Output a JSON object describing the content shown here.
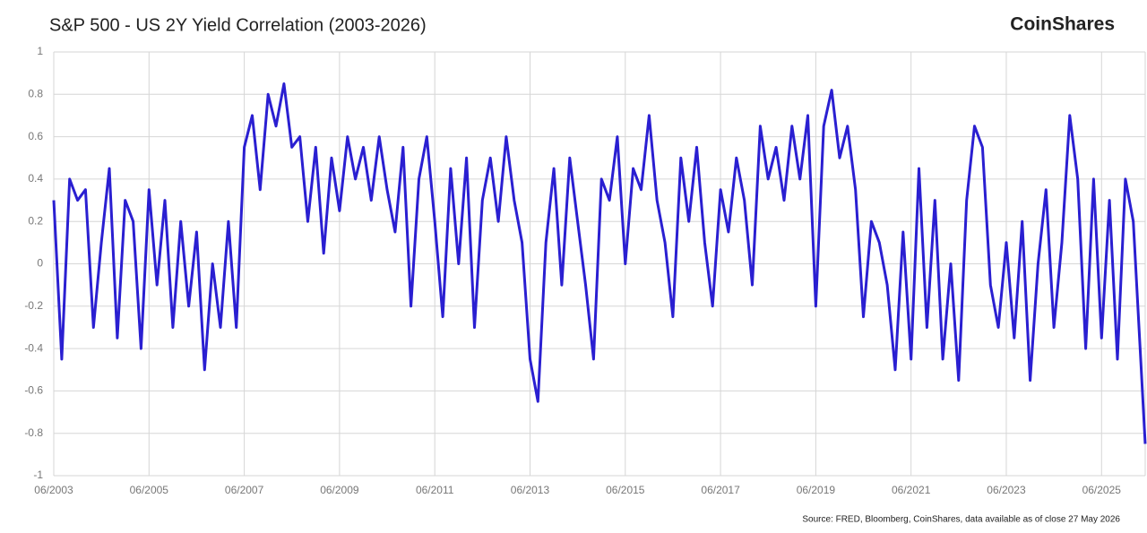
{
  "chart_data": {
    "type": "line",
    "title": "S&P 500 - US 2Y Yield Correlation (2003-2026)",
    "brand": "CoinShares",
    "source": "Source: FRED, Bloomberg, CoinShares, data available as of close 27 May 2026",
    "x": [
      "06/2003",
      "08/2003",
      "10/2003",
      "12/2003",
      "02/2004",
      "04/2004",
      "06/2004",
      "08/2004",
      "10/2004",
      "12/2004",
      "02/2005",
      "04/2005",
      "06/2005",
      "08/2005",
      "10/2005",
      "12/2005",
      "02/2006",
      "04/2006",
      "06/2006",
      "08/2006",
      "10/2006",
      "12/2006",
      "02/2007",
      "04/2007",
      "06/2007",
      "08/2007",
      "10/2007",
      "12/2007",
      "02/2008",
      "04/2008",
      "06/2008",
      "08/2008",
      "10/2008",
      "12/2008",
      "02/2009",
      "04/2009",
      "06/2009",
      "08/2009",
      "10/2009",
      "12/2009",
      "02/2010",
      "04/2010",
      "06/2010",
      "08/2010",
      "10/2010",
      "12/2010",
      "02/2011",
      "04/2011",
      "06/2011",
      "08/2011",
      "10/2011",
      "12/2011",
      "02/2012",
      "04/2012",
      "06/2012",
      "08/2012",
      "10/2012",
      "12/2012",
      "02/2013",
      "04/2013",
      "06/2013",
      "08/2013",
      "10/2013",
      "12/2013",
      "02/2014",
      "04/2014",
      "06/2014",
      "08/2014",
      "10/2014",
      "12/2014",
      "02/2015",
      "04/2015",
      "06/2015",
      "08/2015",
      "10/2015",
      "12/2015",
      "02/2016",
      "04/2016",
      "06/2016",
      "08/2016",
      "10/2016",
      "12/2016",
      "02/2017",
      "04/2017",
      "06/2017",
      "08/2017",
      "10/2017",
      "12/2017",
      "02/2018",
      "04/2018",
      "06/2018",
      "08/2018",
      "10/2018",
      "12/2018",
      "02/2019",
      "04/2019",
      "06/2019",
      "08/2019",
      "10/2019",
      "12/2019",
      "02/2020",
      "04/2020",
      "06/2020",
      "08/2020",
      "10/2020",
      "12/2020",
      "02/2021",
      "04/2021",
      "06/2021",
      "08/2021",
      "10/2021",
      "12/2021",
      "02/2022",
      "04/2022",
      "06/2022",
      "08/2022",
      "10/2022",
      "12/2022",
      "02/2023",
      "04/2023",
      "06/2023",
      "08/2023",
      "10/2023",
      "12/2023",
      "02/2024",
      "04/2024",
      "06/2024",
      "08/2024",
      "10/2024",
      "12/2024",
      "02/2025",
      "04/2025",
      "06/2025",
      "08/2025",
      "10/2025",
      "12/2025",
      "02/2026",
      "04/2026",
      "05/2026"
    ],
    "series": [
      {
        "name": "S&P 500 - US 2Y Yield Correlation",
        "color": "#2a1fd1",
        "values": [
          0.3,
          -0.45,
          0.4,
          0.3,
          0.35,
          -0.3,
          0.1,
          0.45,
          -0.35,
          0.3,
          0.2,
          -0.4,
          0.35,
          -0.1,
          0.3,
          -0.3,
          0.2,
          -0.2,
          0.15,
          -0.5,
          0.0,
          -0.3,
          0.2,
          -0.3,
          0.55,
          0.7,
          0.35,
          0.8,
          0.65,
          0.85,
          0.55,
          0.6,
          0.2,
          0.55,
          0.05,
          0.5,
          0.25,
          0.6,
          0.4,
          0.55,
          0.3,
          0.6,
          0.35,
          0.15,
          0.55,
          -0.2,
          0.4,
          0.6,
          0.2,
          -0.25,
          0.45,
          0.0,
          0.5,
          -0.3,
          0.3,
          0.5,
          0.2,
          0.6,
          0.3,
          0.1,
          -0.45,
          -0.65,
          0.1,
          0.45,
          -0.1,
          0.5,
          0.2,
          -0.1,
          -0.45,
          0.4,
          0.3,
          0.6,
          0.0,
          0.45,
          0.35,
          0.7,
          0.3,
          0.1,
          -0.25,
          0.5,
          0.2,
          0.55,
          0.1,
          -0.2,
          0.35,
          0.15,
          0.5,
          0.3,
          -0.1,
          0.65,
          0.4,
          0.55,
          0.3,
          0.65,
          0.4,
          0.7,
          -0.2,
          0.65,
          0.82,
          0.5,
          0.65,
          0.35,
          -0.25,
          0.2,
          0.1,
          -0.1,
          -0.5,
          0.15,
          -0.45,
          0.45,
          -0.3,
          0.3,
          -0.45,
          0.0,
          -0.55,
          0.3,
          0.65,
          0.55,
          -0.1,
          -0.3,
          0.1,
          -0.35,
          0.2,
          -0.55,
          0.0,
          0.35,
          -0.3,
          0.1,
          0.7,
          0.4,
          -0.4,
          0.4,
          -0.35,
          0.3,
          -0.45,
          0.4,
          0.2,
          -0.5,
          -0.85
        ]
      }
    ],
    "xlim": [
      "06/2003",
      "05/2026"
    ],
    "xticks": [
      "06/2003",
      "06/2005",
      "06/2007",
      "06/2009",
      "06/2011",
      "06/2013",
      "06/2015",
      "06/2017",
      "06/2019",
      "06/2021",
      "06/2023",
      "06/2025"
    ],
    "ylim": [
      -1,
      1
    ],
    "yticks": [
      1,
      0.8,
      0.6,
      0.4,
      0.2,
      0,
      -0.2,
      -0.4,
      -0.6,
      -0.8,
      -1
    ],
    "grid": true
  }
}
